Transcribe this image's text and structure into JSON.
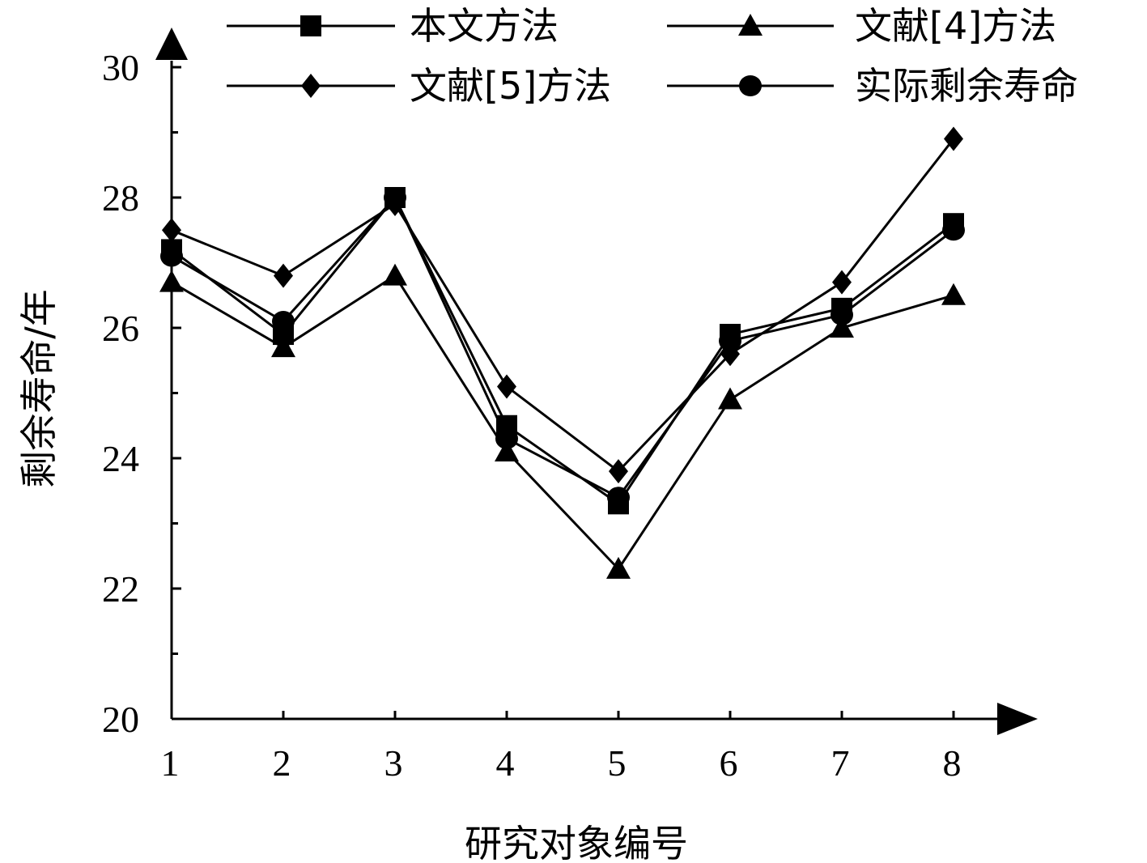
{
  "chart_data": {
    "type": "line",
    "xlabel": "研究对象编号",
    "ylabel": "剩余寿命/年",
    "x": [
      1,
      2,
      3,
      4,
      5,
      6,
      7,
      8
    ],
    "xlim": [
      1,
      8
    ],
    "ylim": [
      20,
      30
    ],
    "yticks": [
      20,
      22,
      24,
      26,
      28,
      30
    ],
    "grid": false,
    "legend_position": "top",
    "series": [
      {
        "name": "本文方法",
        "marker": "square",
        "values": [
          27.2,
          25.9,
          28.0,
          24.5,
          23.3,
          25.9,
          26.3,
          27.6
        ]
      },
      {
        "name": "文献[4]方法",
        "marker": "triangle",
        "values": [
          26.7,
          25.7,
          26.8,
          24.1,
          22.3,
          24.9,
          26.0,
          26.5
        ]
      },
      {
        "name": "文献[5]方法",
        "marker": "diamond",
        "values": [
          27.5,
          26.8,
          27.9,
          25.1,
          23.8,
          25.6,
          26.7,
          28.9
        ]
      },
      {
        "name": "实际剩余寿命",
        "marker": "circle",
        "values": [
          27.1,
          26.1,
          28.0,
          24.3,
          23.4,
          25.8,
          26.2,
          27.5
        ]
      }
    ]
  },
  "colors": {
    "line": "#000000",
    "background": "#ffffff"
  }
}
